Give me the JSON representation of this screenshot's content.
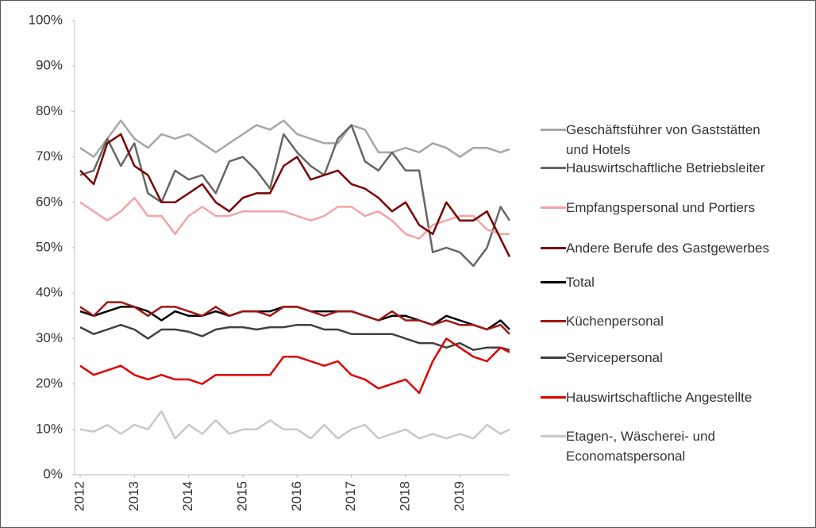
{
  "chart_data": {
    "type": "line",
    "x": [
      2012,
      2012.25,
      2012.5,
      2012.75,
      2013,
      2013.25,
      2013.5,
      2013.75,
      2014,
      2014.25,
      2014.5,
      2014.75,
      2015,
      2015.25,
      2015.5,
      2015.75,
      2016,
      2016.25,
      2016.5,
      2016.75,
      2017,
      2017.25,
      2017.5,
      2017.75,
      2018,
      2018.25,
      2018.5,
      2018.75,
      2019,
      2019.25,
      2019.5,
      2019.75,
      2019.917
    ],
    "xlim": [
      2012,
      2019.917
    ],
    "xticks": [
      2012,
      2013,
      2014,
      2015,
      2016,
      2017,
      2018,
      2019
    ],
    "ylim": [
      0,
      100
    ],
    "yticks": [
      {
        "value": 0,
        "label": "0%"
      },
      {
        "value": 10,
        "label": "10%"
      },
      {
        "value": 20,
        "label": "20%"
      },
      {
        "value": 30,
        "label": "30%"
      },
      {
        "value": 40,
        "label": "40%"
      },
      {
        "value": 50,
        "label": "50%"
      },
      {
        "value": 60,
        "label": "60%"
      },
      {
        "value": 70,
        "label": "70%"
      },
      {
        "value": 80,
        "label": "80%"
      },
      {
        "value": 90,
        "label": "90%"
      },
      {
        "value": 100,
        "label": "100%"
      }
    ],
    "grid": false,
    "legend": "right",
    "series": [
      {
        "name": "Geschäftsführer von Gaststätten und Hotels",
        "color": "#a6a6a6",
        "values": [
          72,
          70,
          74,
          78,
          74,
          72,
          75,
          74,
          75,
          73,
          71,
          73,
          75,
          77,
          76,
          78,
          75,
          74,
          73,
          73,
          77,
          76,
          71,
          71,
          72,
          71,
          73,
          72,
          70,
          72,
          72,
          71,
          71.7
        ]
      },
      {
        "name": "Hauswirtschaftliche Betriebsleiter",
        "color": "#666666",
        "values": [
          66,
          67,
          74,
          68,
          73,
          62,
          60,
          67,
          65,
          66,
          62,
          69,
          70,
          67,
          63,
          75,
          71,
          68,
          66,
          74,
          77,
          69,
          67,
          71,
          67,
          67,
          49,
          50,
          49,
          46,
          50,
          59,
          56
        ]
      },
      {
        "name": "Empfangspersonal und Portiers",
        "color": "#f4a3a3",
        "values": [
          60,
          58,
          56,
          58,
          61,
          57,
          57,
          53,
          57,
          59,
          57,
          57,
          58,
          58,
          58,
          58,
          57,
          56,
          57,
          59,
          59,
          57,
          58,
          56,
          53,
          52,
          55,
          56,
          57,
          57,
          54,
          53,
          53
        ]
      },
      {
        "name": "Andere Berufe des Gastgewerbes",
        "color": "#7a0000",
        "values": [
          67,
          64,
          73,
          75,
          68,
          66,
          60,
          60,
          62,
          64,
          60,
          58,
          61,
          62,
          62,
          68,
          70,
          65,
          66,
          67,
          64,
          63,
          61,
          58,
          60,
          55,
          53,
          60,
          56,
          56,
          58,
          52,
          48
        ]
      },
      {
        "name": "Total",
        "color": "#000000",
        "values": [
          36,
          35,
          36,
          37,
          37,
          36,
          34,
          36,
          35,
          35,
          36,
          35,
          36,
          36,
          36,
          37,
          37,
          36,
          36,
          36,
          36,
          35,
          34,
          35,
          35,
          34,
          33,
          35,
          34,
          33,
          32,
          34,
          32
        ]
      },
      {
        "name": "Küchenpersonal",
        "color": "#a31515",
        "values": [
          37,
          35,
          38,
          38,
          37,
          35,
          37,
          37,
          36,
          35,
          37,
          35,
          36,
          36,
          35,
          37,
          37,
          36,
          35,
          36,
          36,
          35,
          34,
          36,
          34,
          34,
          33,
          34,
          33,
          33,
          32,
          33,
          31
        ]
      },
      {
        "name": "Servicepersonal",
        "color": "#404040",
        "values": [
          32.5,
          31,
          32,
          33,
          32,
          30,
          32,
          32,
          31.5,
          30.5,
          32,
          32.5,
          32.5,
          32,
          32.5,
          32.5,
          33,
          33,
          32,
          32,
          31,
          31,
          31,
          31,
          30,
          29,
          29,
          28,
          29,
          27.5,
          28,
          28,
          27.5
        ]
      },
      {
        "name": "Hauswirtschaftliche Angestellte",
        "color": "#e00000",
        "values": [
          24,
          22,
          23,
          24,
          22,
          21,
          22,
          21,
          21,
          20,
          22,
          22,
          22,
          22,
          22,
          26,
          26,
          25,
          24,
          25,
          22,
          21,
          19,
          20,
          21,
          18,
          25,
          30,
          28,
          26,
          25,
          28,
          27
        ]
      },
      {
        "name": "Etagen-, Wäscherei- und Economatspersonal",
        "color": "#c8c8c8",
        "values": [
          10,
          9.5,
          11,
          9,
          11,
          10,
          14,
          8,
          11,
          9,
          12,
          9,
          10,
          10,
          12,
          10,
          10,
          8,
          11,
          8,
          10,
          11,
          8,
          9,
          10,
          8,
          9,
          8,
          9,
          8,
          11,
          9,
          10
        ]
      }
    ]
  }
}
